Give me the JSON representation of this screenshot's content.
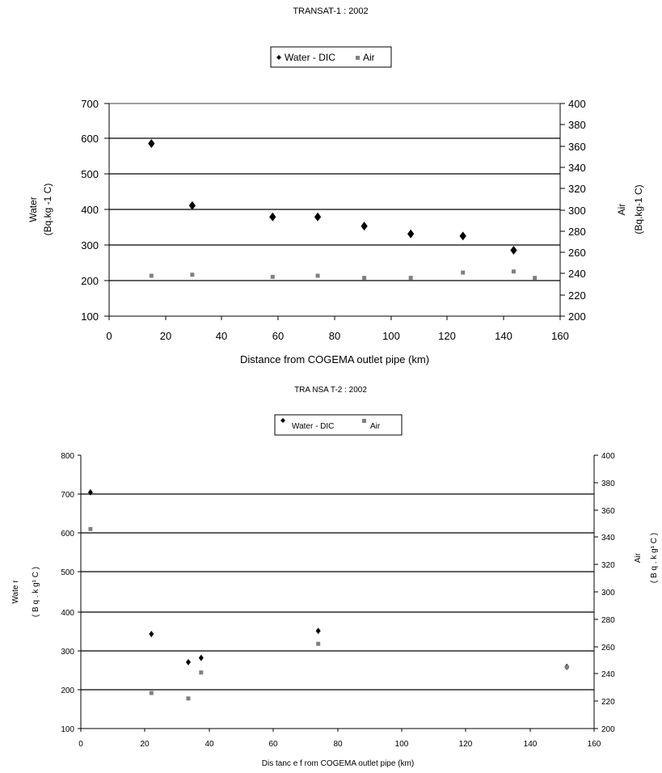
{
  "chart_data": [
    {
      "type": "scatter",
      "title": "TRANSAT-1  : 2002",
      "xlabel": "Distance  from  COGEMA  outlet pipe (km)",
      "ylabel_left": [
        "Water",
        "(Bq.kg -1 C)"
      ],
      "ylabel_right": [
        "Air",
        "(Bq.kg-1  C)"
      ],
      "xlim": [
        0,
        160
      ],
      "ylim_left": [
        100,
        700
      ],
      "ylim_right": [
        200,
        400
      ],
      "xticks": [
        "0",
        "20",
        "40",
        "60",
        "80",
        "100",
        "120",
        "140",
        "160"
      ],
      "yticks_left": [
        "100",
        "200",
        "300",
        "400",
        "500",
        "600",
        "700"
      ],
      "yticks_right": [
        "200",
        "220",
        "240",
        "260",
        "280",
        "300",
        "320",
        "340",
        "360",
        "380",
        "400"
      ],
      "grid": "horizontal gridlines at 200-600 on left axis",
      "legend": {
        "position": "top-center",
        "entries": [
          "Water - DIC",
          "Air"
        ]
      },
      "colors": {
        "water": "#000000",
        "air": "#808080"
      },
      "series": [
        {
          "name": "Water - DIC",
          "axis": "left",
          "marker": "diamond",
          "x": [
            15,
            29.5,
            58,
            74,
            90.5,
            107,
            125.5,
            143.5
          ],
          "y": [
            587,
            412,
            380,
            380,
            354,
            332,
            326,
            286
          ]
        },
        {
          "name": "Air",
          "axis": "right",
          "marker": "square",
          "x": [
            15,
            29.5,
            58,
            74,
            90.5,
            107,
            125.5,
            143.5,
            151
          ],
          "y": [
            238,
            239,
            237,
            238,
            236,
            236,
            241,
            242,
            236
          ]
        }
      ]
    },
    {
      "type": "scatter",
      "title": "TRA NSA T-2  : 2002",
      "xlabel": "Dis tanc e  f rom  COGEMA    outlet  pipe  (km)",
      "ylabel_left": [
        "Wate r",
        "( B q . k g¹  C )"
      ],
      "ylabel_right": [
        "Air",
        "( B q . k g¹  C )"
      ],
      "xlim": [
        0,
        160
      ],
      "ylim_left": [
        100,
        800
      ],
      "ylim_right": [
        200,
        400
      ],
      "xticks": [
        "0",
        "20",
        "40",
        "60",
        "80",
        "100",
        "120",
        "140",
        "160"
      ],
      "yticks_left": [
        "100",
        "200",
        "300",
        "400",
        "500",
        "600",
        "700",
        "800"
      ],
      "yticks_right": [
        "200",
        "220",
        "240",
        "260",
        "280",
        "300",
        "320",
        "340",
        "360",
        "380",
        "400"
      ],
      "grid": "horizontal gridlines at 200-700 on left axis",
      "legend": {
        "position": "top-center",
        "entries": [
          "Water   - DIC",
          "Air"
        ]
      },
      "colors": {
        "water": "#000000",
        "air": "#808080"
      },
      "series": [
        {
          "name": "Water   - DIC",
          "axis": "left",
          "marker": "diamond",
          "x": [
            3,
            22,
            33.5,
            37.5,
            74,
            151.5
          ],
          "y": [
            705,
            342,
            270,
            281,
            350,
            258
          ]
        },
        {
          "name": "Air",
          "axis": "right",
          "marker": "square",
          "x": [
            3,
            22,
            33.5,
            37.5,
            74,
            151.5
          ],
          "y": [
            346,
            226,
            222,
            241,
            262,
            245
          ]
        }
      ]
    }
  ]
}
